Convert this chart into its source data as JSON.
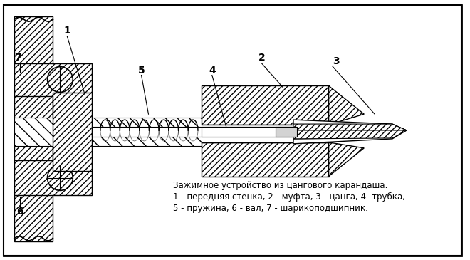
{
  "title": "Зажимное устройство из цангового карандаша:",
  "caption_line1": "1 - передняя стенка, 2 - муфта, 3 - цанга, 4- трубка,",
  "caption_line2": "5 - пружина, 6 - вал, 7 - шарикоподшипник.",
  "bg_color": "#ffffff",
  "border_color": "#000000",
  "hatch_color": "#000000",
  "label_1": "1",
  "label_2": "2",
  "label_3": "3",
  "label_4": "4",
  "label_5": "5",
  "label_6": "6",
  "label_7": "7"
}
